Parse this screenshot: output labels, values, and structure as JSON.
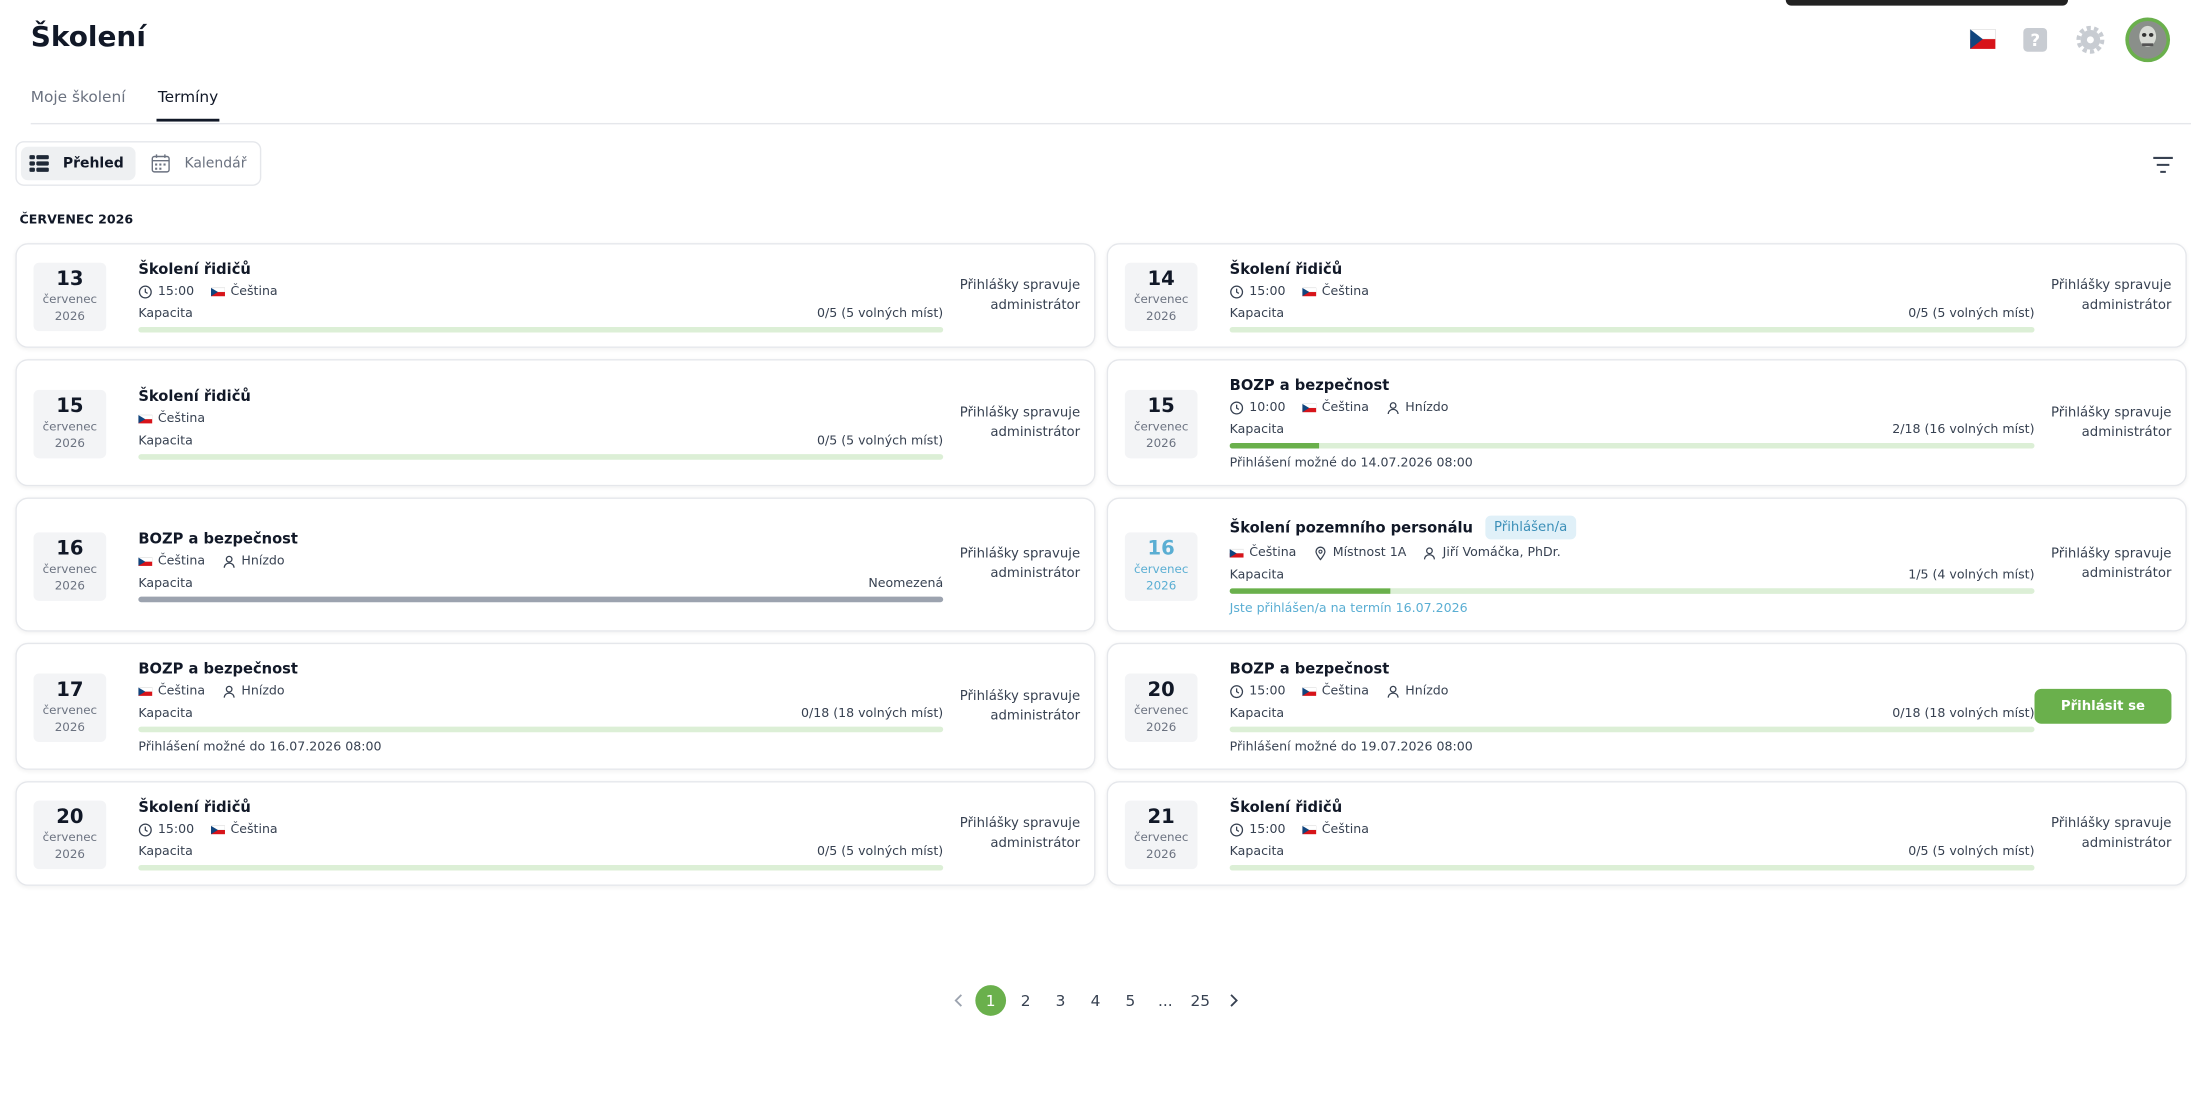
{
  "header": {
    "title": "Školení"
  },
  "tabs": [
    "Moje školení",
    "Termíny"
  ],
  "views": [
    "Přehled",
    "Kalendář"
  ],
  "section": "ČERVENEC 2026",
  "cards": [
    {
      "day": "13",
      "month": "červenec",
      "year": "2026",
      "title": "Školení řidičů",
      "time": "15:00",
      "language": "Čeština",
      "capacity_label": "Kapacita",
      "capacity": "0/5 (5 volných míst)",
      "action": "Přihlášky spravuje administrátor"
    },
    {
      "day": "14",
      "month": "červenec",
      "year": "2026",
      "title": "Školení řidičů",
      "time": "15:00",
      "language": "Čeština",
      "capacity_label": "Kapacita",
      "capacity": "0/5 (5 volných míst)",
      "action": "Přihlášky spravuje administrátor"
    },
    {
      "day": "15",
      "month": "červenec",
      "year": "2026",
      "title": "Školení řidičů",
      "language": "Čeština",
      "capacity_label": "Kapacita",
      "capacity": "0/5 (5 volných míst)",
      "action": "Přihlášky spravuje administrátor"
    },
    {
      "day": "15",
      "month": "červenec",
      "year": "2026",
      "title": "BOZP a bezpečnost",
      "time": "10:00",
      "language": "Čeština",
      "person": "Hnízdo",
      "capacity_label": "Kapacita",
      "capacity": "2/18 (16 volných míst)",
      "note": "Přihlášení možné do 14.07.2026 08:00",
      "action": "Přihlášky spravuje administrátor"
    },
    {
      "day": "16",
      "month": "červenec",
      "year": "2026",
      "title": "BOZP a bezpečnost",
      "language": "Čeština",
      "person": "Hnízdo",
      "capacity_label": "Kapacita",
      "capacity": "Neomezená",
      "action": "Přihlášky spravuje administrátor"
    },
    {
      "day": "16",
      "month": "červenec",
      "year": "2026",
      "title": "Školení pozemního personálu",
      "badge": "Přihlášen/a",
      "language": "Čeština",
      "room": "Místnost 1A",
      "person": "Jiří Vomáčka, PhDr.",
      "capacity_label": "Kapacita",
      "capacity": "1/5 (4 volných míst)",
      "registered_note": "Jste přihlášen/a na termín 16.07.2026",
      "action": "Přihlášky spravuje administrátor"
    },
    {
      "day": "17",
      "month": "červenec",
      "year": "2026",
      "title": "BOZP a bezpečnost",
      "language": "Čeština",
      "person": "Hnízdo",
      "capacity_label": "Kapacita",
      "capacity": "0/18 (18 volných míst)",
      "note": "Přihlášení možné do 16.07.2026 08:00",
      "action": "Přihlášky spravuje administrátor"
    },
    {
      "day": "20",
      "month": "červenec",
      "year": "2026",
      "title": "BOZP a bezpečnost",
      "time": "15:00",
      "language": "Čeština",
      "person": "Hnízdo",
      "capacity_label": "Kapacita",
      "capacity": "0/18 (18 volných míst)",
      "note": "Přihlášení možné do 19.07.2026 08:00",
      "button": "Přihlásit se"
    },
    {
      "day": "20",
      "month": "červenec",
      "year": "2026",
      "title": "Školení řidičů",
      "time": "15:00",
      "language": "Čeština",
      "capacity_label": "Kapacita",
      "capacity": "0/5 (5 volných míst)",
      "action": "Přihlášky spravuje administrátor"
    },
    {
      "day": "21",
      "month": "červenec",
      "year": "2026",
      "title": "Školení řidičů",
      "time": "15:00",
      "language": "Čeština",
      "capacity_label": "Kapacita",
      "capacity": "0/5 (5 volných míst)",
      "action": "Přihlášky spravuje administrátor"
    }
  ],
  "pagination": [
    "1",
    "2",
    "3",
    "4",
    "5",
    "...",
    "25"
  ]
}
